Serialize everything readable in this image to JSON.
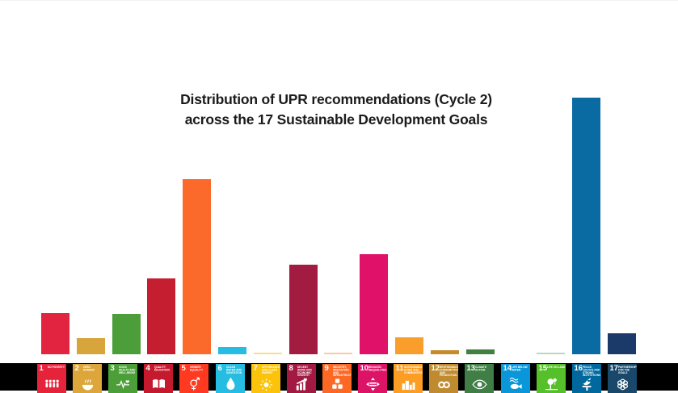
{
  "title": {
    "line1": "Distribution of UPR recommendations (Cycle 2)",
    "line2": "across the 17 Sustainable Development Goals"
  },
  "chart_data": {
    "type": "bar",
    "title": "Distribution of UPR recommendations (Cycle 2) across the 17 Sustainable Development Goals",
    "xlabel": "",
    "ylabel": "",
    "legend": "none",
    "grid": false,
    "y_axis_shown": false,
    "x_axis_labels": "SDG icon tiles 1-17",
    "categories": [
      "SDG 1",
      "SDG 2",
      "SDG 3",
      "SDG 4",
      "SDG 5",
      "SDG 6",
      "SDG 7",
      "SDG 8",
      "SDG 9",
      "SDG 10",
      "SDG 11",
      "SDG 12",
      "SDG 13",
      "SDG 14",
      "SDG 15",
      "SDG 16",
      "SDG 17"
    ],
    "values": [
      51,
      20,
      50,
      94,
      217,
      9,
      2,
      111,
      2,
      124,
      21,
      5,
      6,
      0,
      2,
      318,
      26
    ],
    "unit": "approximate bar heights in px (no numeric axis shown in source chart)",
    "bar_colors": [
      "#E32440",
      "#D8A43C",
      "#4B9E39",
      "#C51E30",
      "#FB6A2A",
      "#27BCE2",
      "#FADC8E",
      "#A21C42",
      "#FDC9A4",
      "#DF1168",
      "#F99E2B",
      "#C6892C",
      "#41803F",
      "#0A97D9",
      "#B7D9BE",
      "#0A6BA2",
      "#1C3A69"
    ]
  },
  "sdg_strip": {
    "background": "#000000",
    "tiles": [
      {
        "num": "1",
        "label": "No Poverty",
        "color": "#E5243B",
        "icon": "people-icon"
      },
      {
        "num": "2",
        "label": "Zero Hunger",
        "color": "#DDA63A",
        "icon": "bowl-icon"
      },
      {
        "num": "3",
        "label": "Good Health and Well-Being",
        "color": "#4C9F38",
        "icon": "heartbeat-icon"
      },
      {
        "num": "4",
        "label": "Quality Education",
        "color": "#C5192D",
        "icon": "open-book-icon"
      },
      {
        "num": "5",
        "label": "Gender Equality",
        "color": "#FF3A21",
        "icon": "gender-equality-icon"
      },
      {
        "num": "6",
        "label": "Clean Water and Sanitation",
        "color": "#26BDE2",
        "icon": "water-drop-icon"
      },
      {
        "num": "7",
        "label": "Affordable and Clean Energy",
        "color": "#FCC30B",
        "icon": "sun-energy-icon"
      },
      {
        "num": "8",
        "label": "Decent Work and Economic Growth",
        "color": "#A21942",
        "icon": "growth-chart-icon"
      },
      {
        "num": "9",
        "label": "Industry, Innovation and Infrastructure",
        "color": "#FD6925",
        "icon": "building-blocks-icon"
      },
      {
        "num": "10",
        "label": "Reduced Inequalities",
        "color": "#DD1367",
        "icon": "equality-arrows-icon"
      },
      {
        "num": "11",
        "label": "Sustainable Cities and Communities",
        "color": "#FD9D24",
        "icon": "city-skyline-icon"
      },
      {
        "num": "12",
        "label": "Responsible Consumption and Production",
        "color": "#BF8B2E",
        "icon": "infinity-loop-icon"
      },
      {
        "num": "13",
        "label": "Climate Action",
        "color": "#3F7E44",
        "icon": "eye-icon"
      },
      {
        "num": "14",
        "label": "Life Below Water",
        "color": "#0A97D9",
        "icon": "fish-icon"
      },
      {
        "num": "15",
        "label": "Life on Land",
        "color": "#56C02B",
        "icon": "tree-icon"
      },
      {
        "num": "16",
        "label": "Peace, Justice and Strong Institutions",
        "color": "#00689D",
        "icon": "dove-icon"
      },
      {
        "num": "17",
        "label": "Partnerships for the Goals",
        "color": "#19486A",
        "icon": "interlocking-rings-icon"
      }
    ]
  }
}
